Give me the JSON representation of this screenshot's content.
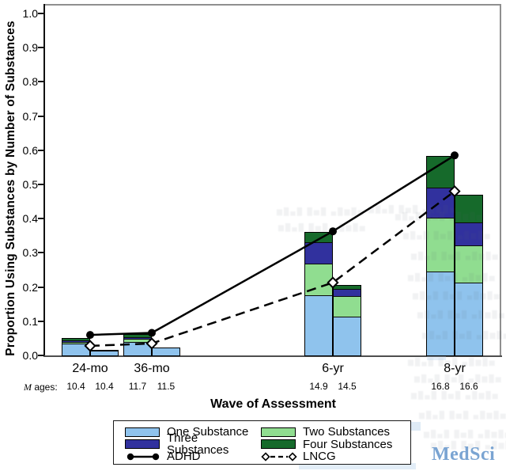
{
  "y_axis": {
    "title": "Proportion Using Substances by Number of Substances",
    "tick_labels": [
      "1.0",
      "0.9",
      "0.8",
      "0.7",
      "0.6",
      "0.5",
      "0.4",
      "0.3",
      "0.2",
      "0.1",
      "0.0"
    ]
  },
  "x_axis": {
    "title": "Wave of Assessment",
    "ages_label_m": "M",
    "ages_label_rest": " ages:"
  },
  "chart_data": {
    "type": "bar",
    "subtype": "stacked-bars-with-line-overlay",
    "stacked": true,
    "categories": [
      "24-mo",
      "36-mo",
      "6-yr",
      "8-yr"
    ],
    "stack_order": [
      "one",
      "two",
      "three",
      "four"
    ],
    "ylim": [
      0,
      1.0
    ],
    "grid": false,
    "legend_position": "bottom",
    "series": [
      {
        "name": "ADHD",
        "role": "left-bar",
        "line_style": "solid",
        "marker": "filled-circle",
        "stacks": {
          "one": [
            0.035,
            0.04,
            0.177,
            0.245
          ],
          "two": [
            0.005,
            0.008,
            0.092,
            0.158
          ],
          "three": [
            0.005,
            0.005,
            0.062,
            0.088
          ],
          "four": [
            0.006,
            0.01,
            0.03,
            0.093
          ]
        },
        "bar_totals": [
          0.051,
          0.063,
          0.361,
          0.584
        ],
        "line_values": [
          0.06,
          0.066,
          0.363,
          0.585
        ],
        "m_ages": [
          "10.4",
          "11.7",
          "14.9",
          "16.8"
        ]
      },
      {
        "name": "LNCG",
        "role": "right-bar",
        "line_style": "dashed",
        "marker": "open-diamond",
        "stacks": {
          "one": [
            0.013,
            0.022,
            0.114,
            0.213
          ],
          "two": [
            0.004,
            0.0,
            0.06,
            0.108
          ],
          "three": [
            0.0,
            0.0,
            0.021,
            0.069
          ],
          "four": [
            0.0,
            0.0,
            0.012,
            0.079
          ]
        },
        "bar_totals": [
          0.017,
          0.022,
          0.207,
          0.469
        ],
        "line_values": [
          0.028,
          0.035,
          0.213,
          0.48
        ],
        "m_ages": [
          "10.4",
          "11.5",
          "14.5",
          "16.6"
        ]
      }
    ]
  },
  "colors": {
    "one": "#8FC3ED",
    "two": "#90DD90",
    "three": "#31319E",
    "four": "#166A2B",
    "line": "#000000",
    "axis": "#000000",
    "frame_gray": "#8f8f8f",
    "watermark_blue": "#7AA4D2"
  },
  "legend": {
    "items": [
      {
        "key": "one",
        "label": "One Substance"
      },
      {
        "key": "two",
        "label": "Two Substances"
      },
      {
        "key": "three",
        "label": "Three Substances"
      },
      {
        "key": "four",
        "label": "Four Substances"
      },
      {
        "key": "adhd",
        "label": "ADHD",
        "sample": "solid-line-filled-circle"
      },
      {
        "key": "lncg",
        "label": "LNCG",
        "sample": "dashed-line-open-diamond"
      }
    ]
  },
  "watermark": {
    "text": "MedSci"
  }
}
